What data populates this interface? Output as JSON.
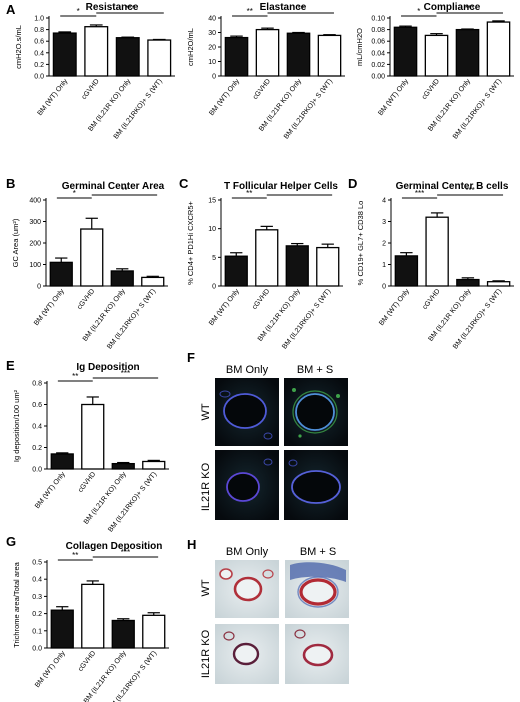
{
  "panel_letters": [
    "A",
    "B",
    "C",
    "D",
    "E",
    "F",
    "G",
    "H"
  ],
  "chart_data": [
    {
      "id": "resistance",
      "panel": "A",
      "type": "bar",
      "title": "Resistance",
      "ylabel": "cmH2O.s/mL",
      "categories": [
        "BM (WT) Only",
        "cGVHD",
        "BM (IL21R KO) Only",
        "BM (IL21RKO)+ S (WT)"
      ],
      "values": [
        0.74,
        0.85,
        0.66,
        0.62
      ],
      "errors": [
        0.02,
        0.03,
        0.01,
        0.01
      ],
      "ylim": [
        0,
        1.0
      ],
      "yticks": [
        {
          "v": 0,
          "t": "0.0"
        },
        {
          "v": 0.2,
          "t": "0.2"
        },
        {
          "v": 0.4,
          "t": "0.4"
        },
        {
          "v": 0.6,
          "t": "0.6"
        },
        {
          "v": 0.8,
          "t": "0.8"
        },
        {
          "v": 1.0,
          "t": "1.0"
        }
      ],
      "fills": [
        "#111111",
        "#ffffff",
        "#111111",
        "#ffffff"
      ],
      "brackets": [
        {
          "from": 0,
          "to": 1,
          "label": "*"
        },
        {
          "from": 1,
          "to": 3,
          "label": "***"
        }
      ]
    },
    {
      "id": "elastance",
      "panel": "",
      "type": "bar",
      "title": "Elastance",
      "ylabel": "cmH2O/mL",
      "categories": [
        "BM (WT) Only",
        "cGVHD",
        "BM (IL21R KO) Only",
        "BM (IL21RKO)+ S (WT)"
      ],
      "values": [
        26.5,
        32,
        29.5,
        28
      ],
      "errors": [
        1.0,
        1.0,
        0.5,
        0.5
      ],
      "ylim": [
        0,
        40
      ],
      "yticks": [
        {
          "v": 0,
          "t": "0"
        },
        {
          "v": 10,
          "t": "10"
        },
        {
          "v": 20,
          "t": "20"
        },
        {
          "v": 30,
          "t": "30"
        },
        {
          "v": 40,
          "t": "40"
        }
      ],
      "fills": [
        "#111111",
        "#ffffff",
        "#111111",
        "#ffffff"
      ],
      "brackets": [
        {
          "from": 0,
          "to": 1,
          "label": "**"
        },
        {
          "from": 1,
          "to": 3,
          "label": "**"
        }
      ]
    },
    {
      "id": "compliance",
      "panel": "",
      "type": "bar",
      "title": "Compliance",
      "ylabel": "mL/cmH2O",
      "categories": [
        "BM (WT) Only",
        "cGVHD",
        "BM (IL21R KO) Only",
        "BM (IL21RKO)+ S (WT)"
      ],
      "values": [
        0.084,
        0.07,
        0.08,
        0.093
      ],
      "errors": [
        0.002,
        0.003,
        0.001,
        0.002
      ],
      "ylim": [
        0,
        0.1
      ],
      "yticks": [
        {
          "v": 0,
          "t": "0.00"
        },
        {
          "v": 0.02,
          "t": "0.02"
        },
        {
          "v": 0.04,
          "t": "0.04"
        },
        {
          "v": 0.06,
          "t": "0.06"
        },
        {
          "v": 0.08,
          "t": "0.08"
        },
        {
          "v": 0.1,
          "t": "0.10"
        }
      ],
      "fills": [
        "#111111",
        "#ffffff",
        "#111111",
        "#ffffff"
      ],
      "brackets": [
        {
          "from": 0,
          "to": 1,
          "label": "*"
        },
        {
          "from": 1,
          "to": 3,
          "label": "***"
        }
      ]
    },
    {
      "id": "germinal-center-area",
      "panel": "B",
      "type": "bar",
      "title": "Germinal Center Area",
      "ylabel": "GC Area (um²)",
      "categories": [
        "BM (WT) Only",
        "cGVHD",
        "BM (IL21R KO) Only",
        "BM (IL21RKO)+ S (WT)"
      ],
      "values": [
        110,
        265,
        70,
        40
      ],
      "errors": [
        20,
        50,
        10,
        5
      ],
      "ylim": [
        0,
        400
      ],
      "yticks": [
        {
          "v": 0,
          "t": "0"
        },
        {
          "v": 100,
          "t": "100"
        },
        {
          "v": 200,
          "t": "200"
        },
        {
          "v": 300,
          "t": "300"
        },
        {
          "v": 400,
          "t": "400"
        }
      ],
      "fills": [
        "#111111",
        "#ffffff",
        "#111111",
        "#ffffff"
      ],
      "brackets": [
        {
          "from": 0,
          "to": 1,
          "label": "*"
        },
        {
          "from": 1,
          "to": 3,
          "label": "**"
        }
      ]
    },
    {
      "id": "t-follicular-helper",
      "panel": "C",
      "type": "bar",
      "title": "T Follicular Helper Cells",
      "ylabel": "% CD4+ PD1Hi CXCR5+",
      "categories": [
        "BM (WT) Only",
        "cGVHD",
        "BM (IL21R KO) Only",
        "BM (IL21RKO)+ S (WT)"
      ],
      "values": [
        5.2,
        9.8,
        7.0,
        6.7
      ],
      "errors": [
        0.6,
        0.6,
        0.4,
        0.6
      ],
      "ylim": [
        0,
        15
      ],
      "yticks": [
        {
          "v": 0,
          "t": "0"
        },
        {
          "v": 5,
          "t": "5"
        },
        {
          "v": 10,
          "t": "10"
        },
        {
          "v": 15,
          "t": "15"
        }
      ],
      "fills": [
        "#111111",
        "#ffffff",
        "#111111",
        "#ffffff"
      ],
      "brackets": [
        {
          "from": 0,
          "to": 1,
          "label": "**"
        },
        {
          "from": 1,
          "to": 3,
          "label": "*"
        }
      ]
    },
    {
      "id": "germinal-center-b",
      "panel": "D",
      "type": "bar",
      "title": "Germinal Center B cells",
      "ylabel": "% CD19+ GL7+ CD38 Lo",
      "categories": [
        "BM (WT) Only",
        "cGVHD",
        "BM (IL21R KO) Only",
        "BM (IL21RKO)+ S (WT)"
      ],
      "values": [
        1.4,
        3.2,
        0.3,
        0.2
      ],
      "errors": [
        0.15,
        0.2,
        0.08,
        0.04
      ],
      "ylim": [
        0,
        4
      ],
      "yticks": [
        {
          "v": 0,
          "t": "0"
        },
        {
          "v": 1,
          "t": "1"
        },
        {
          "v": 2,
          "t": "2"
        },
        {
          "v": 3,
          "t": "3"
        },
        {
          "v": 4,
          "t": "4"
        }
      ],
      "fills": [
        "#111111",
        "#ffffff",
        "#111111",
        "#ffffff"
      ],
      "brackets": [
        {
          "from": 0,
          "to": 1,
          "label": "***"
        },
        {
          "from": 1,
          "to": 3,
          "label": "***"
        }
      ]
    },
    {
      "id": "ig-deposition",
      "panel": "E",
      "type": "bar",
      "title": "Ig Deposition",
      "ylabel": "Ig deposition/100 um²",
      "categories": [
        "BM (WT) Only",
        "cGVHD",
        "BM (IL21R KO) Only",
        "BM (IL21RKO)+ S (WT)"
      ],
      "values": [
        0.14,
        0.6,
        0.05,
        0.07
      ],
      "errors": [
        0.01,
        0.07,
        0.01,
        0.01
      ],
      "ylim": [
        0,
        0.8
      ],
      "yticks": [
        {
          "v": 0,
          "t": "0.0"
        },
        {
          "v": 0.2,
          "t": "0.2"
        },
        {
          "v": 0.4,
          "t": "0.4"
        },
        {
          "v": 0.6,
          "t": "0.6"
        },
        {
          "v": 0.8,
          "t": "0.8"
        }
      ],
      "fills": [
        "#111111",
        "#ffffff",
        "#111111",
        "#ffffff"
      ],
      "brackets": [
        {
          "from": 0,
          "to": 1,
          "label": "**"
        },
        {
          "from": 1,
          "to": 3,
          "label": "***"
        }
      ]
    },
    {
      "id": "collagen-deposition",
      "panel": "G",
      "type": "bar",
      "title": "Collagen Deposition",
      "ylabel": "Trichrome area/Total area",
      "categories": [
        "BM (WT) Only",
        "cGVHD",
        "BM (IL21R KO) Only",
        "BM (IL21RKO)+ S (WT)"
      ],
      "values": [
        0.22,
        0.37,
        0.16,
        0.19
      ],
      "errors": [
        0.02,
        0.02,
        0.01,
        0.015
      ],
      "ylim": [
        0,
        0.5
      ],
      "yticks": [
        {
          "v": 0,
          "t": "0.0"
        },
        {
          "v": 0.1,
          "t": "0.1"
        },
        {
          "v": 0.2,
          "t": "0.2"
        },
        {
          "v": 0.3,
          "t": "0.3"
        },
        {
          "v": 0.4,
          "t": "0.4"
        },
        {
          "v": 0.5,
          "t": "0.5"
        }
      ],
      "fills": [
        "#111111",
        "#ffffff",
        "#111111",
        "#ffffff"
      ],
      "brackets": [
        {
          "from": 0,
          "to": 1,
          "label": "**"
        },
        {
          "from": 1,
          "to": 3,
          "label": "***"
        }
      ]
    }
  ],
  "micrographs": [
    {
      "id": "immunofluorescence",
      "panel": "F",
      "col_labels": [
        "BM Only",
        "BM + S"
      ],
      "row_labels": [
        "WT",
        "IL21R KO"
      ],
      "background": "#0a0f14"
    },
    {
      "id": "trichrome",
      "panel": "H",
      "col_labels": [
        "BM Only",
        "BM + S"
      ],
      "row_labels": [
        "WT",
        "IL21R KO"
      ],
      "background": "#dce3e6"
    }
  ]
}
